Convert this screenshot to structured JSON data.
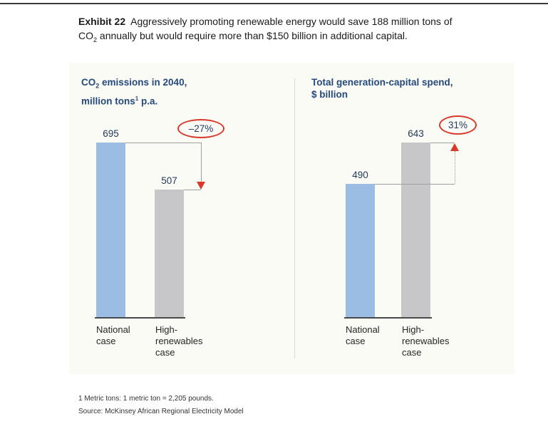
{
  "page": {
    "exhibit_label": "Exhibit 22",
    "title_line1": "Aggressively promoting renewable energy would save 188 million tons of",
    "title_line2_pre": "CO",
    "title_line2_sub": "2",
    "title_line2_post": " annually but would require more than $150 billion in additional capital.",
    "footnote": "1 Metric tons: 1 metric ton = 2,205 pounds.",
    "source": "Source: McKinsey African Regional Electricity Model"
  },
  "colors": {
    "bar_blue": "#9bbde4",
    "bar_gray": "#c7c7c9",
    "header_blue": "#26497e",
    "annotation_red": "#d9392a",
    "panel_background": "#fafbf4"
  },
  "chart_data": [
    {
      "type": "bar",
      "title": "CO2 emissions in 2040",
      "ylabel": "million tons p.a.",
      "header": {
        "line1_pre": "CO",
        "line1_sub": "2",
        "line1_post": " emissions in 2040,",
        "line2_pre": "million tons",
        "line2_sup": "1",
        "line2_post": " p.a."
      },
      "categories": [
        "National case",
        "High-renewables case"
      ],
      "category_lines": [
        [
          "National",
          "case"
        ],
        [
          "High-",
          "renewables",
          "case"
        ]
      ],
      "values": [
        695,
        507
      ],
      "bar_labels": [
        "695",
        "507"
      ],
      "ylim": [
        0,
        695
      ],
      "grid": false,
      "annotation": {
        "text": "–27%",
        "direction": "down"
      }
    },
    {
      "type": "bar",
      "title": "Total generation-capital spend",
      "ylabel": "$ billion",
      "header": {
        "line1": "Total generation-capital spend,",
        "line2": "$ billion"
      },
      "categories": [
        "National case",
        "High-renewables case"
      ],
      "category_lines": [
        [
          "National",
          "case"
        ],
        [
          "High-",
          "renewables",
          "case"
        ]
      ],
      "values": [
        490,
        643
      ],
      "bar_labels": [
        "490",
        "643"
      ],
      "ylim": [
        0,
        643
      ],
      "grid": false,
      "annotation": {
        "text": "31%",
        "direction": "up"
      }
    }
  ]
}
